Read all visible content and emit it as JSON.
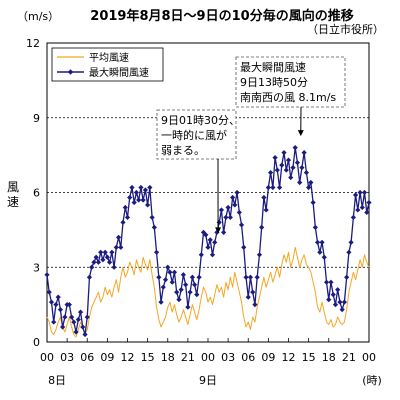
{
  "chart_data": {
    "type": "line",
    "title": "2019年8月8日～9日の10分毎の風向の推移",
    "unit_label": "（m/s）",
    "source_label": "（日立市役所）",
    "ylabel": "風速",
    "xlabel_unit": "(時)",
    "ylim": [
      0,
      12
    ],
    "yticks": [
      0,
      3,
      6,
      9,
      12
    ],
    "gridlines": [
      3,
      6,
      9
    ],
    "xlim": [
      0,
      48
    ],
    "x_ticks": [
      {
        "x": 0,
        "label": "00"
      },
      {
        "x": 3,
        "label": "03"
      },
      {
        "x": 6,
        "label": "06"
      },
      {
        "x": 9,
        "label": "09"
      },
      {
        "x": 12,
        "label": "12"
      },
      {
        "x": 15,
        "label": "15"
      },
      {
        "x": 18,
        "label": "18"
      },
      {
        "x": 21,
        "label": "21"
      },
      {
        "x": 24,
        "label": "00"
      },
      {
        "x": 27,
        "label": "03"
      },
      {
        "x": 30,
        "label": "06"
      },
      {
        "x": 33,
        "label": "09"
      },
      {
        "x": 36,
        "label": "12"
      },
      {
        "x": 39,
        "label": "15"
      },
      {
        "x": 42,
        "label": "18"
      },
      {
        "x": 45,
        "label": "21"
      },
      {
        "x": 48,
        "label": "00"
      }
    ],
    "day_labels": [
      {
        "x": 1.5,
        "label": "8日"
      },
      {
        "x": 24,
        "label": "9日"
      }
    ],
    "legend": {
      "position": "top-left"
    },
    "series": [
      {
        "name": "平均風速",
        "color": "#f5a623",
        "marker": "none",
        "points": [
          [
            0,
            1.0
          ],
          [
            0.33,
            0.8
          ],
          [
            0.67,
            0.4
          ],
          [
            1,
            0.3
          ],
          [
            1.33,
            0.5
          ],
          [
            1.67,
            0.8
          ],
          [
            2,
            1.0
          ],
          [
            2.33,
            0.6
          ],
          [
            2.67,
            0.4
          ],
          [
            3,
            0.7
          ],
          [
            3.33,
            1.0
          ],
          [
            3.67,
            0.6
          ],
          [
            4,
            0.3
          ],
          [
            4.33,
            0.2
          ],
          [
            4.67,
            0.5
          ],
          [
            5,
            0.8
          ],
          [
            5.33,
            0.6
          ],
          [
            5.67,
            0.3
          ],
          [
            6,
            0.5
          ],
          [
            6.33,
            1.0
          ],
          [
            6.67,
            1.4
          ],
          [
            7,
            1.6
          ],
          [
            7.33,
            1.8
          ],
          [
            7.67,
            2.0
          ],
          [
            8,
            1.6
          ],
          [
            8.33,
            1.8
          ],
          [
            8.67,
            2.2
          ],
          [
            9,
            1.9
          ],
          [
            9.33,
            2.1
          ],
          [
            9.67,
            1.8
          ],
          [
            10,
            2.2
          ],
          [
            10.33,
            2.5
          ],
          [
            10.67,
            2.0
          ],
          [
            11,
            2.6
          ],
          [
            11.33,
            3.0
          ],
          [
            11.67,
            2.6
          ],
          [
            12,
            2.8
          ],
          [
            12.33,
            3.2
          ],
          [
            12.67,
            3.0
          ],
          [
            13,
            2.7
          ],
          [
            13.33,
            3.3
          ],
          [
            13.67,
            3.0
          ],
          [
            14,
            2.8
          ],
          [
            14.33,
            3.4
          ],
          [
            14.67,
            3.1
          ],
          [
            15,
            2.9
          ],
          [
            15.33,
            3.3
          ],
          [
            15.67,
            2.7
          ],
          [
            16,
            2.2
          ],
          [
            16.33,
            1.4
          ],
          [
            16.67,
            0.9
          ],
          [
            17,
            0.6
          ],
          [
            17.33,
            0.8
          ],
          [
            17.67,
            1.0
          ],
          [
            18,
            1.4
          ],
          [
            18.33,
            1.6
          ],
          [
            18.67,
            1.2
          ],
          [
            19,
            1.5
          ],
          [
            19.33,
            1.1
          ],
          [
            19.67,
            0.8
          ],
          [
            20,
            1.0
          ],
          [
            20.33,
            1.3
          ],
          [
            20.67,
            1.0
          ],
          [
            21,
            0.7
          ],
          [
            21.33,
            1.1
          ],
          [
            21.67,
            1.5
          ],
          [
            22,
            1.2
          ],
          [
            22.33,
            0.9
          ],
          [
            22.67,
            1.3
          ],
          [
            23,
            1.8
          ],
          [
            23.33,
            2.2
          ],
          [
            23.67,
            2.0
          ],
          [
            24,
            1.6
          ],
          [
            24.33,
            1.8
          ],
          [
            24.67,
            1.5
          ],
          [
            25,
            1.9
          ],
          [
            25.33,
            2.3
          ],
          [
            25.67,
            2.0
          ],
          [
            26,
            2.2
          ],
          [
            26.33,
            1.8
          ],
          [
            26.67,
            2.4
          ],
          [
            27,
            2.1
          ],
          [
            27.33,
            2.6
          ],
          [
            27.67,
            2.2
          ],
          [
            28,
            2.8
          ],
          [
            28.33,
            2.4
          ],
          [
            28.67,
            2.0
          ],
          [
            29,
            1.6
          ],
          [
            29.33,
            1.0
          ],
          [
            29.67,
            0.6
          ],
          [
            30,
            0.8
          ],
          [
            30.33,
            0.5
          ],
          [
            30.67,
            1.0
          ],
          [
            31,
            0.8
          ],
          [
            31.33,
            1.4
          ],
          [
            31.67,
            1.8
          ],
          [
            32,
            2.2
          ],
          [
            32.33,
            2.6
          ],
          [
            32.67,
            2.2
          ],
          [
            33,
            2.5
          ],
          [
            33.33,
            2.8
          ],
          [
            33.67,
            2.4
          ],
          [
            34,
            2.7
          ],
          [
            34.33,
            3.0
          ],
          [
            34.67,
            2.6
          ],
          [
            35,
            3.1
          ],
          [
            35.33,
            3.5
          ],
          [
            35.67,
            3.2
          ],
          [
            36,
            3.6
          ],
          [
            36.33,
            3.0
          ],
          [
            36.67,
            3.3
          ],
          [
            37,
            3.8
          ],
          [
            37.33,
            3.4
          ],
          [
            37.67,
            3.0
          ],
          [
            38,
            3.3
          ],
          [
            38.33,
            3.5
          ],
          [
            38.67,
            3.1
          ],
          [
            39,
            3.0
          ],
          [
            39.33,
            2.8
          ],
          [
            39.67,
            2.4
          ],
          [
            40,
            2.0
          ],
          [
            40.33,
            1.4
          ],
          [
            40.67,
            1.2
          ],
          [
            41,
            1.6
          ],
          [
            41.33,
            1.2
          ],
          [
            41.67,
            0.8
          ],
          [
            42,
            0.7
          ],
          [
            42.33,
            0.9
          ],
          [
            42.67,
            0.6
          ],
          [
            43,
            0.7
          ],
          [
            43.33,
            1.0
          ],
          [
            43.67,
            0.8
          ],
          [
            44,
            0.7
          ],
          [
            44.33,
            0.8
          ],
          [
            44.67,
            1.3
          ],
          [
            45,
            2.0
          ],
          [
            45.33,
            2.4
          ],
          [
            45.67,
            2.8
          ],
          [
            46,
            2.5
          ],
          [
            46.33,
            2.9
          ],
          [
            46.67,
            3.3
          ],
          [
            47,
            3.0
          ],
          [
            47.33,
            3.5
          ],
          [
            47.67,
            3.2
          ],
          [
            48,
            3.0
          ]
        ]
      },
      {
        "name": "最大瞬間風速",
        "color": "#1c1c80",
        "marker": "diamond",
        "points": [
          [
            0,
            2.7
          ],
          [
            0.33,
            2.0
          ],
          [
            0.67,
            1.6
          ],
          [
            1,
            0.8
          ],
          [
            1.33,
            1.5
          ],
          [
            1.67,
            1.8
          ],
          [
            2,
            1.3
          ],
          [
            2.33,
            0.6
          ],
          [
            2.67,
            1.0
          ],
          [
            3,
            1.5
          ],
          [
            3.33,
            1.5
          ],
          [
            3.67,
            1.0
          ],
          [
            4,
            0.8
          ],
          [
            4.33,
            0.4
          ],
          [
            4.67,
            0.9
          ],
          [
            5,
            1.2
          ],
          [
            5.33,
            0.6
          ],
          [
            5.67,
            0.3
          ],
          [
            6,
            1.0
          ],
          [
            6.33,
            2.6
          ],
          [
            6.67,
            3.0
          ],
          [
            7,
            3.2
          ],
          [
            7.33,
            3.4
          ],
          [
            7.67,
            3.2
          ],
          [
            8,
            3.6
          ],
          [
            8.33,
            3.3
          ],
          [
            8.67,
            3.6
          ],
          [
            9,
            3.4
          ],
          [
            9.33,
            3.2
          ],
          [
            9.67,
            3.6
          ],
          [
            10,
            3.0
          ],
          [
            10.33,
            3.8
          ],
          [
            10.67,
            4.2
          ],
          [
            11,
            3.8
          ],
          [
            11.33,
            4.8
          ],
          [
            11.67,
            5.4
          ],
          [
            12,
            5.0
          ],
          [
            12.33,
            5.8
          ],
          [
            12.67,
            6.2
          ],
          [
            13,
            5.6
          ],
          [
            13.33,
            6.0
          ],
          [
            13.67,
            5.7
          ],
          [
            14,
            6.2
          ],
          [
            14.33,
            5.7
          ],
          [
            14.67,
            6.1
          ],
          [
            15,
            5.5
          ],
          [
            15.33,
            6.2
          ],
          [
            15.67,
            5.0
          ],
          [
            16,
            4.6
          ],
          [
            16.33,
            3.6
          ],
          [
            16.67,
            2.6
          ],
          [
            17,
            1.6
          ],
          [
            17.33,
            2.2
          ],
          [
            17.67,
            2.5
          ],
          [
            18,
            3.0
          ],
          [
            18.33,
            2.8
          ],
          [
            18.67,
            2.4
          ],
          [
            19,
            2.8
          ],
          [
            19.33,
            2.0
          ],
          [
            19.67,
            1.7
          ],
          [
            20,
            2.1
          ],
          [
            20.33,
            2.7
          ],
          [
            20.67,
            2.3
          ],
          [
            21,
            1.4
          ],
          [
            21.33,
            2.0
          ],
          [
            21.67,
            2.6
          ],
          [
            22,
            2.3
          ],
          [
            22.33,
            1.9
          ],
          [
            22.67,
            2.6
          ],
          [
            23,
            3.5
          ],
          [
            23.33,
            4.4
          ],
          [
            23.67,
            4.3
          ],
          [
            24,
            3.8
          ],
          [
            24.33,
            4.1
          ],
          [
            24.67,
            3.5
          ],
          [
            25,
            4.0
          ],
          [
            25.33,
            4.4
          ],
          [
            25.67,
            4.8
          ],
          [
            26,
            5.3
          ],
          [
            26.33,
            4.4
          ],
          [
            26.67,
            5.0
          ],
          [
            27,
            5.4
          ],
          [
            27.33,
            5.0
          ],
          [
            27.67,
            5.8
          ],
          [
            28,
            5.5
          ],
          [
            28.33,
            6.0
          ],
          [
            28.67,
            5.2
          ],
          [
            29,
            4.7
          ],
          [
            29.33,
            3.8
          ],
          [
            29.67,
            2.6
          ],
          [
            30,
            1.8
          ],
          [
            30.33,
            2.6
          ],
          [
            30.67,
            2.0
          ],
          [
            31,
            1.5
          ],
          [
            31.33,
            2.6
          ],
          [
            31.67,
            3.5
          ],
          [
            32,
            4.6
          ],
          [
            32.33,
            5.8
          ],
          [
            32.67,
            5.3
          ],
          [
            33,
            6.2
          ],
          [
            33.33,
            6.8
          ],
          [
            33.67,
            6.2
          ],
          [
            34,
            7.4
          ],
          [
            34.33,
            6.9
          ],
          [
            34.67,
            6.2
          ],
          [
            35,
            7.1
          ],
          [
            35.33,
            7.6
          ],
          [
            35.67,
            6.9
          ],
          [
            36,
            7.3
          ],
          [
            36.33,
            6.6
          ],
          [
            36.67,
            7.0
          ],
          [
            37,
            7.8
          ],
          [
            37.33,
            7.2
          ],
          [
            37.67,
            6.4
          ],
          [
            38,
            7.0
          ],
          [
            38.33,
            7.6
          ],
          [
            38.67,
            6.8
          ],
          [
            39,
            6.2
          ],
          [
            39.33,
            6.4
          ],
          [
            39.67,
            5.6
          ],
          [
            40,
            4.6
          ],
          [
            40.33,
            4.0
          ],
          [
            40.67,
            3.6
          ],
          [
            41,
            4.0
          ],
          [
            41.33,
            3.4
          ],
          [
            41.67,
            2.4
          ],
          [
            42,
            1.7
          ],
          [
            42.33,
            2.4
          ],
          [
            42.67,
            1.9
          ],
          [
            43,
            1.5
          ],
          [
            43.33,
            2.1
          ],
          [
            43.67,
            1.6
          ],
          [
            44,
            1.3
          ],
          [
            44.33,
            1.6
          ],
          [
            44.67,
            2.6
          ],
          [
            45,
            3.6
          ],
          [
            45.33,
            4.0
          ],
          [
            45.67,
            5.0
          ],
          [
            46,
            5.9
          ],
          [
            46.33,
            5.3
          ],
          [
            46.67,
            6.0
          ],
          [
            47,
            5.4
          ],
          [
            47.33,
            6.0
          ],
          [
            47.67,
            5.2
          ],
          [
            48,
            5.6
          ]
        ]
      }
    ],
    "annotations": [
      {
        "lines": [
          "9日01時30分、",
          "一時的に風が",
          "弱まる。"
        ],
        "target": [
          25.5,
          4.2
        ]
      },
      {
        "lines": [
          "最大瞬間風速",
          "9日13時50分",
          "南南西の風 8.1m/s"
        ],
        "target": [
          37.83,
          8.1
        ]
      }
    ]
  }
}
